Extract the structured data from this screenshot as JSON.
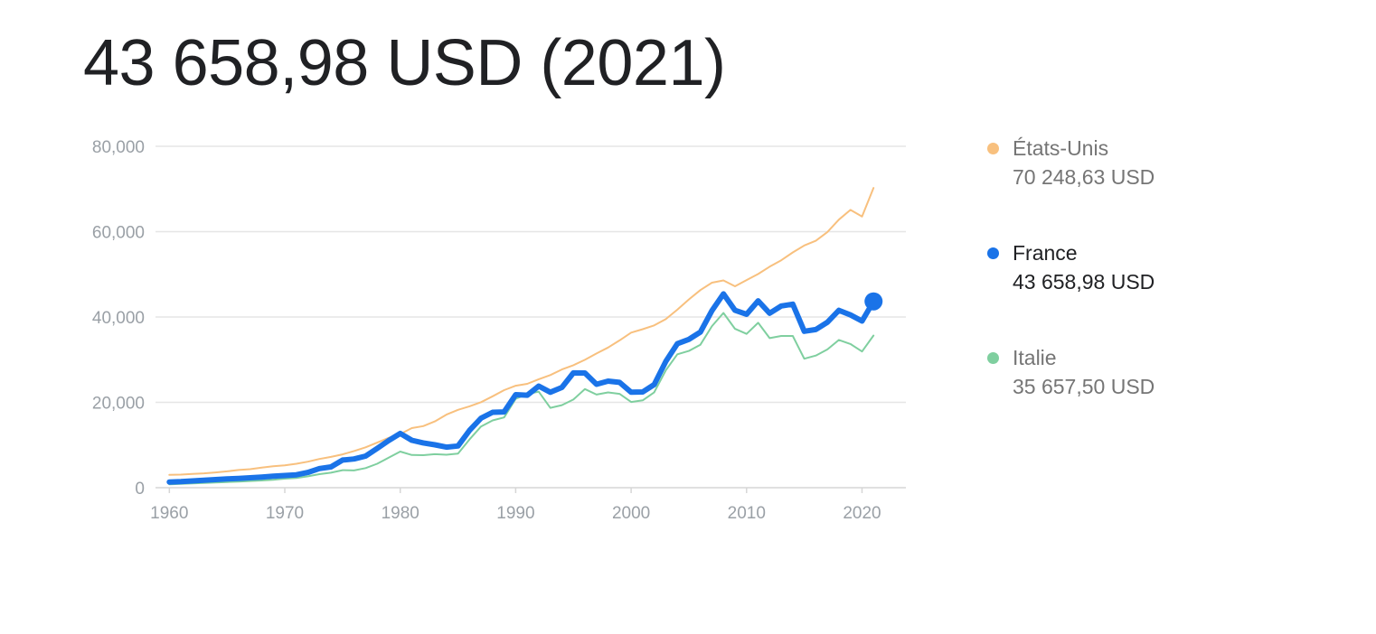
{
  "headline": "43 658,98 USD (2021)",
  "colors": {
    "etats_unis": "#f8c07e",
    "france": "#1a73e8",
    "italie": "#7fcf9f",
    "grid": "#e6e6e6",
    "tick_text": "#9aa0a6"
  },
  "legend": [
    {
      "name": "États-Unis",
      "value": "70 248,63 USD",
      "color": "#f8c07e",
      "state": "muted"
    },
    {
      "name": "France",
      "value": "43 658,98 USD",
      "color": "#1a73e8",
      "state": "active"
    },
    {
      "name": "Italie",
      "value": "35 657,50 USD",
      "color": "#7fcf9f",
      "state": "muted"
    }
  ],
  "chart_data": {
    "type": "line",
    "title": "43 658,98 USD (2021)",
    "xlabel": "",
    "ylabel": "",
    "xlim": [
      1960,
      2021
    ],
    "ylim": [
      0,
      80000
    ],
    "grid": true,
    "legend_position": "right",
    "x_ticks": [
      1960,
      1970,
      1980,
      1990,
      2000,
      2010,
      2020
    ],
    "x_tick_labels": [
      "1960",
      "1970",
      "1980",
      "1990",
      "2000",
      "2010",
      "2020"
    ],
    "y_ticks": [
      0,
      20000,
      40000,
      60000,
      80000
    ],
    "y_tick_labels": [
      "0",
      "20,000",
      "40,000",
      "60,000",
      "80,000"
    ],
    "x": [
      1960,
      1961,
      1962,
      1963,
      1964,
      1965,
      1966,
      1967,
      1968,
      1969,
      1970,
      1971,
      1972,
      1973,
      1974,
      1975,
      1976,
      1977,
      1978,
      1979,
      1980,
      1981,
      1982,
      1983,
      1984,
      1985,
      1986,
      1987,
      1988,
      1989,
      1990,
      1991,
      1992,
      1993,
      1994,
      1995,
      1996,
      1997,
      1998,
      1999,
      2000,
      2001,
      2002,
      2003,
      2004,
      2005,
      2006,
      2007,
      2008,
      2009,
      2010,
      2011,
      2012,
      2013,
      2014,
      2015,
      2016,
      2017,
      2018,
      2019,
      2020,
      2021
    ],
    "series": [
      {
        "name": "États-Unis",
        "values": [
          3007,
          3067,
          3244,
          3375,
          3574,
          3828,
          4146,
          4336,
          4696,
          5032,
          5234,
          5609,
          6094,
          6726,
          7226,
          7801,
          8592,
          9453,
          10565,
          11674,
          12575,
          13976,
          14434,
          15544,
          17121,
          18237,
          19071,
          20039,
          21417,
          22857,
          23889,
          24342,
          25419,
          26387,
          27695,
          28691,
          29968,
          31459,
          32854,
          34516,
          36335,
          37133,
          38023,
          39496,
          41713,
          44115,
          46299,
          48050,
          48570,
          47195,
          48651,
          50066,
          51784,
          53291,
          55124,
          56763,
          57867,
          59915,
          62805,
          65095,
          63528,
          70249
        ]
      },
      {
        "name": "France",
        "values": [
          1334,
          1428,
          1590,
          1756,
          1911,
          2046,
          2182,
          2327,
          2491,
          2698,
          2867,
          3017,
          3577,
          4497,
          4870,
          6470,
          6728,
          7415,
          9209,
          11057,
          12713,
          11106,
          10497,
          10045,
          9511,
          9773,
          13413,
          16292,
          17663,
          17748,
          21793,
          21675,
          23815,
          22368,
          23488,
          26890,
          26870,
          24228,
          24973,
          24673,
          22364,
          22434,
          24177,
          29568,
          33741,
          34760,
          36470,
          41509,
          45413,
          41575,
          40638,
          43791,
          40875,
          42592,
          43011,
          36652,
          37063,
          38781,
          41557,
          40494,
          39055,
          43659
        ]
      },
      {
        "name": "Italie",
        "values": [
          804,
          889,
          992,
          1131,
          1229,
          1323,
          1437,
          1570,
          1692,
          1869,
          2112,
          2284,
          2675,
          3180,
          3508,
          4101,
          4042,
          4592,
          5606,
          7024,
          8456,
          7654,
          7627,
          7846,
          7727,
          7969,
          11304,
          14350,
          15773,
          16463,
          20826,
          21956,
          22494,
          18705,
          19337,
          20665,
          23116,
          21829,
          22319,
          21988,
          20088,
          20469,
          22349,
          27493,
          31256,
          32045,
          33501,
          37867,
          40944,
          37226,
          36036,
          38649,
          35054,
          35550,
          35565,
          30230,
          30960,
          32407,
          34622,
          33674,
          31919,
          35658
        ]
      }
    ]
  }
}
